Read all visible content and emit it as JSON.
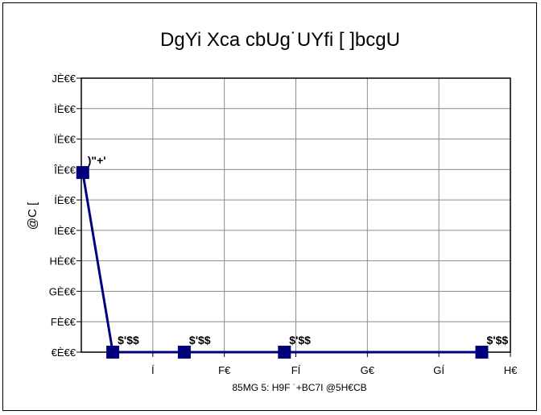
{
  "chart_data": {
    "type": "line",
    "title": "DgYi Xca cbUg˙UYfi [ ]bcgU",
    "xlabel": "85MG 5: H9F ˙+BC7I @5H€CB",
    "ylabel": "@C [",
    "x_ticks": [
      "Í",
      "F€",
      "FÍ",
      "G€",
      "GÍ",
      "H€"
    ],
    "x_tick_values": [
      5,
      10,
      15,
      20,
      25,
      30
    ],
    "y_ticks": [
      "€È€€",
      "FÈ€€",
      "GÈ€€",
      "HÈ€€",
      "IÈ€€",
      "ÍÈ€€",
      "ÎÈ€€",
      "ÏÈ€€",
      "ÌÈ€€",
      "JÈ€€"
    ],
    "y_tick_values": [
      0,
      1,
      2,
      3,
      4,
      5,
      6,
      7,
      8,
      9
    ],
    "xlim": [
      0,
      30
    ],
    "ylim": [
      0,
      9
    ],
    "grid": true,
    "color": "#00007f",
    "series": [
      {
        "points": [
          {
            "x": 0.1,
            "y": 5.9,
            "label": ")\"+'"
          },
          {
            "x": 2.2,
            "y": 0,
            "label": "$'$$"
          },
          {
            "x": 7.2,
            "y": 0,
            "label": "$'$$"
          },
          {
            "x": 14.2,
            "y": 0,
            "label": "$'$$"
          },
          {
            "x": 28.0,
            "y": 0,
            "label": "$'$$"
          }
        ]
      }
    ]
  }
}
